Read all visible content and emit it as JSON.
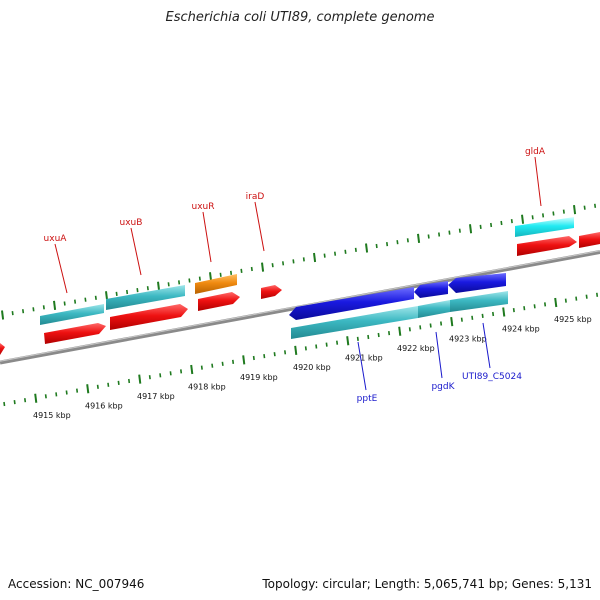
{
  "title": "Escherichia coli UTI89, complete genome",
  "footer": {
    "accession": "Accession: NC_007946",
    "summary": "Topology: circular; Length: 5,065,741 bp; Genes: 5,131"
  },
  "colors": {
    "backbone": "#8a8a8a",
    "ticks": "#1f7a1f",
    "forward_cds": "#ee1111",
    "forward_rna": "#40b8c0",
    "reverse_cds": "#1a1ae0",
    "reverse_rna": "#40b8c0",
    "highlight": "#f08a10",
    "label_top": "#cc1111",
    "label_bottom": "#1a1acc"
  },
  "axis": {
    "unit": "kbp",
    "tick_labels": [
      "4915 kbp",
      "4916 kbp",
      "4917 kbp",
      "4918 kbp",
      "4919 kbp",
      "4920 kbp",
      "4921 kbp",
      "4922 kbp",
      "4923 kbp",
      "4924 kbp",
      "4925 kbp"
    ]
  },
  "genes_top": [
    {
      "label": "uxuA"
    },
    {
      "label": "uxuB"
    },
    {
      "label": "uxuR"
    },
    {
      "label": "iraD"
    },
    {
      "label": "gldA"
    }
  ],
  "genes_bottom": [
    {
      "label": "pptE"
    },
    {
      "label": "pgdK"
    },
    {
      "label": "UTI89_C5024"
    }
  ]
}
